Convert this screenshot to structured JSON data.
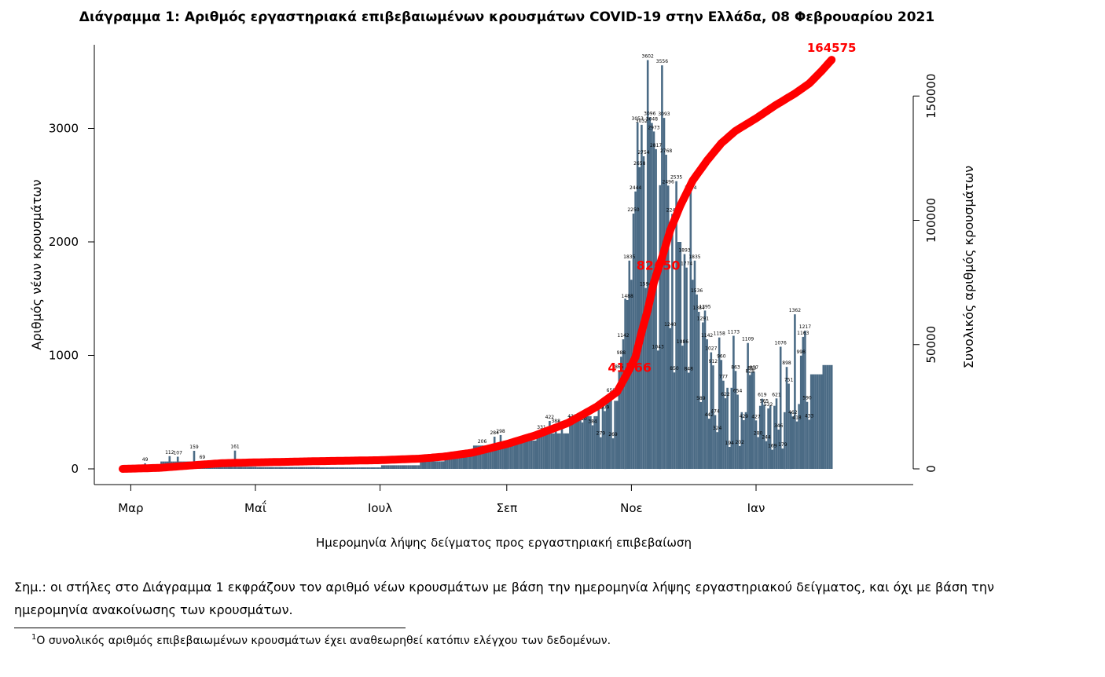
{
  "chart_data": {
    "type": "bar+line",
    "title": "Διάγραμμα 1: Αριθμός εργαστηριακά επιβεβαιωμένων κρουσμάτων COVID-19 στην Ελλάδα, 08 Φεβρουαρίου 2021",
    "xlabel": "Ημερομηνία λήψης δείγματος προς εργαστηριακή επιβεβαίωση",
    "ylabel_left": "Αριθμός νέων κρουσμάτων",
    "ylabel_right": "Συνολικός αριθμός κρουσμάτων",
    "x_start": "2020-02-26",
    "x_end": "2021-02-07",
    "x_ticks": [
      {
        "date": "2020-03-01",
        "label": "Μαρ"
      },
      {
        "date": "2020-05-01",
        "label": "Μαΐ"
      },
      {
        "date": "2020-07-01",
        "label": "Ιουλ"
      },
      {
        "date": "2020-09-01",
        "label": "Σεπ"
      },
      {
        "date": "2020-11-01",
        "label": "Νοε"
      },
      {
        "date": "2021-01-01",
        "label": "Ιαν"
      }
    ],
    "ylim_left": [
      0,
      3500
    ],
    "yticks_left": [
      0,
      1000,
      2000,
      3000
    ],
    "ylim_right": [
      0,
      165000
    ],
    "yticks_right": [
      0,
      50000,
      100000,
      150000
    ],
    "grid": false,
    "bars": {
      "name": "Νέα κρούσματα",
      "color": "#4b6b85",
      "labeled_points": [
        {
          "date": "2020-03-08",
          "value": 49
        },
        {
          "date": "2020-03-20",
          "value": 112
        },
        {
          "date": "2020-03-24",
          "value": 107
        },
        {
          "date": "2020-04-01",
          "value": 159
        },
        {
          "date": "2020-04-05",
          "value": 69
        },
        {
          "date": "2020-04-21",
          "value": 161
        },
        {
          "date": "2020-08-20",
          "value": 206
        },
        {
          "date": "2020-08-26",
          "value": 284
        },
        {
          "date": "2020-08-29",
          "value": 298
        },
        {
          "date": "2020-09-18",
          "value": 331
        },
        {
          "date": "2020-09-22",
          "value": 422
        },
        {
          "date": "2020-09-25",
          "value": 388
        },
        {
          "date": "2020-09-28",
          "value": 366
        },
        {
          "date": "2020-10-03",
          "value": 430
        },
        {
          "date": "2020-10-08",
          "value": 410
        },
        {
          "date": "2020-10-13",
          "value": 384
        },
        {
          "date": "2020-10-17",
          "value": 279
        },
        {
          "date": "2020-10-19",
          "value": 509
        },
        {
          "date": "2020-10-22",
          "value": 658
        },
        {
          "date": "2020-10-23",
          "value": 269
        },
        {
          "date": "2020-10-26",
          "value": 865
        },
        {
          "date": "2020-10-27",
          "value": 988
        },
        {
          "date": "2020-10-28",
          "value": 1142
        },
        {
          "date": "2020-10-30",
          "value": 1488
        },
        {
          "date": "2020-10-31",
          "value": 1835
        },
        {
          "date": "2020-11-02",
          "value": 2250
        },
        {
          "date": "2020-11-03",
          "value": 2444
        },
        {
          "date": "2020-11-04",
          "value": 3053
        },
        {
          "date": "2020-11-05",
          "value": 2658
        },
        {
          "date": "2020-11-06",
          "value": 3032
        },
        {
          "date": "2020-11-07",
          "value": 2754
        },
        {
          "date": "2020-11-08",
          "value": 1594
        },
        {
          "date": "2020-11-09",
          "value": 3602
        },
        {
          "date": "2020-11-10",
          "value": 3096
        },
        {
          "date": "2020-11-11",
          "value": 3048
        },
        {
          "date": "2020-11-12",
          "value": 2973
        },
        {
          "date": "2020-11-13",
          "value": 2817
        },
        {
          "date": "2020-11-14",
          "value": 1043
        },
        {
          "date": "2020-11-16",
          "value": 3556
        },
        {
          "date": "2020-11-17",
          "value": 3093
        },
        {
          "date": "2020-11-18",
          "value": 2768
        },
        {
          "date": "2020-11-19",
          "value": 2496
        },
        {
          "date": "2020-11-20",
          "value": 1240
        },
        {
          "date": "2020-11-21",
          "value": 2247
        },
        {
          "date": "2020-11-22",
          "value": 850
        },
        {
          "date": "2020-11-23",
          "value": 2535
        },
        {
          "date": "2020-11-26",
          "value": 1086
        },
        {
          "date": "2020-11-27",
          "value": 1893
        },
        {
          "date": "2020-11-28",
          "value": 1774
        },
        {
          "date": "2020-11-29",
          "value": 848
        },
        {
          "date": "2020-11-30",
          "value": 2444
        },
        {
          "date": "2020-12-02",
          "value": 1835
        },
        {
          "date": "2020-12-03",
          "value": 1536
        },
        {
          "date": "2020-12-04",
          "value": 1384
        },
        {
          "date": "2020-12-05",
          "value": 589
        },
        {
          "date": "2020-12-06",
          "value": 1291
        },
        {
          "date": "2020-12-07",
          "value": 1395
        },
        {
          "date": "2020-12-08",
          "value": 1142
        },
        {
          "date": "2020-12-09",
          "value": 442
        },
        {
          "date": "2020-12-10",
          "value": 1027
        },
        {
          "date": "2020-12-11",
          "value": 912
        },
        {
          "date": "2020-12-12",
          "value": 474
        },
        {
          "date": "2020-12-13",
          "value": 324
        },
        {
          "date": "2020-12-14",
          "value": 1158
        },
        {
          "date": "2020-12-15",
          "value": 960
        },
        {
          "date": "2020-12-16",
          "value": 777
        },
        {
          "date": "2020-12-17",
          "value": 622
        },
        {
          "date": "2020-12-19",
          "value": 194
        },
        {
          "date": "2020-12-21",
          "value": 1173
        },
        {
          "date": "2020-12-22",
          "value": 863
        },
        {
          "date": "2020-12-23",
          "value": 654
        },
        {
          "date": "2020-12-24",
          "value": 202
        },
        {
          "date": "2020-12-26",
          "value": 429
        },
        {
          "date": "2020-12-28",
          "value": 1109
        },
        {
          "date": "2020-12-29",
          "value": 828
        },
        {
          "date": "2020-12-30",
          "value": 853
        },
        {
          "date": "2020-12-31",
          "value": 857
        },
        {
          "date": "2021-01-01",
          "value": 427
        },
        {
          "date": "2021-01-02",
          "value": 280
        },
        {
          "date": "2021-01-04",
          "value": 619
        },
        {
          "date": "2021-01-05",
          "value": 565
        },
        {
          "date": "2021-01-06",
          "value": 244
        },
        {
          "date": "2021-01-07",
          "value": 532
        },
        {
          "date": "2021-01-09",
          "value": 169
        },
        {
          "date": "2021-01-11",
          "value": 621
        },
        {
          "date": "2021-01-12",
          "value": 346
        },
        {
          "date": "2021-01-13",
          "value": 1076
        },
        {
          "date": "2021-01-14",
          "value": 179
        },
        {
          "date": "2021-01-16",
          "value": 898
        },
        {
          "date": "2021-01-17",
          "value": 751
        },
        {
          "date": "2021-01-19",
          "value": 462
        },
        {
          "date": "2021-01-20",
          "value": 1362
        },
        {
          "date": "2021-01-21",
          "value": 418
        },
        {
          "date": "2021-01-23",
          "value": 998
        },
        {
          "date": "2021-01-24",
          "value": 1163
        },
        {
          "date": "2021-01-25",
          "value": 1217
        },
        {
          "date": "2021-01-26",
          "value": 590
        },
        {
          "date": "2021-01-27",
          "value": 433
        }
      ]
    },
    "line": {
      "name": "Συνολικός αριθμός κρουσμάτων",
      "color": "#ff0000",
      "points": [
        {
          "date": "2020-02-26",
          "value": 0
        },
        {
          "date": "2020-03-15",
          "value": 400
        },
        {
          "date": "2020-04-01",
          "value": 1500
        },
        {
          "date": "2020-04-15",
          "value": 2300
        },
        {
          "date": "2020-05-01",
          "value": 2600
        },
        {
          "date": "2020-06-01",
          "value": 3100
        },
        {
          "date": "2020-07-01",
          "value": 3500
        },
        {
          "date": "2020-07-20",
          "value": 4100
        },
        {
          "date": "2020-08-01",
          "value": 4900
        },
        {
          "date": "2020-08-15",
          "value": 6500
        },
        {
          "date": "2020-09-01",
          "value": 10000
        },
        {
          "date": "2020-09-15",
          "value": 13500
        },
        {
          "date": "2020-10-01",
          "value": 18500
        },
        {
          "date": "2020-10-15",
          "value": 25000
        },
        {
          "date": "2020-10-25",
          "value": 31000
        },
        {
          "date": "2020-10-31",
          "value": 40000
        },
        {
          "date": "2020-11-03",
          "value": 45000
        },
        {
          "date": "2020-11-06",
          "value": 55000
        },
        {
          "date": "2020-11-09",
          "value": 64000
        },
        {
          "date": "2020-11-12",
          "value": 75000
        },
        {
          "date": "2020-11-16",
          "value": 85000
        },
        {
          "date": "2020-11-20",
          "value": 96000
        },
        {
          "date": "2020-11-25",
          "value": 106000
        },
        {
          "date": "2020-12-01",
          "value": 116000
        },
        {
          "date": "2020-12-08",
          "value": 124000
        },
        {
          "date": "2020-12-15",
          "value": 131000
        },
        {
          "date": "2020-12-22",
          "value": 136000
        },
        {
          "date": "2021-01-01",
          "value": 141000
        },
        {
          "date": "2021-01-10",
          "value": 146000
        },
        {
          "date": "2021-01-20",
          "value": 151000
        },
        {
          "date": "2021-01-27",
          "value": 155000
        },
        {
          "date": "2021-02-02",
          "value": 160000
        },
        {
          "date": "2021-02-07",
          "value": 164575
        }
      ],
      "annotations": [
        {
          "date": "2020-11-01",
          "value": 41566,
          "label": "41566"
        },
        {
          "date": "2020-11-15",
          "value": 82650,
          "label": "82650"
        },
        {
          "date": "2021-02-07",
          "value": 164575,
          "label": "164575"
        }
      ]
    }
  },
  "note": "Σημ.: οι στήλες στο Διάγραμμα 1 εκφράζουν τον αριθμό νέων κρουσμάτων με βάση την ημερομηνία λήψης εργαστηριακού δείγματος, και όχι με βάση την ημερομηνία ανακοίνωσης των κρουσμάτων.",
  "footnote": {
    "marker": "1",
    "text": "Ο συνολικός αριθμός επιβεβαιωμένων κρουσμάτων έχει αναθεωρηθεί κατόπιν ελέγχου των δεδομένων."
  }
}
